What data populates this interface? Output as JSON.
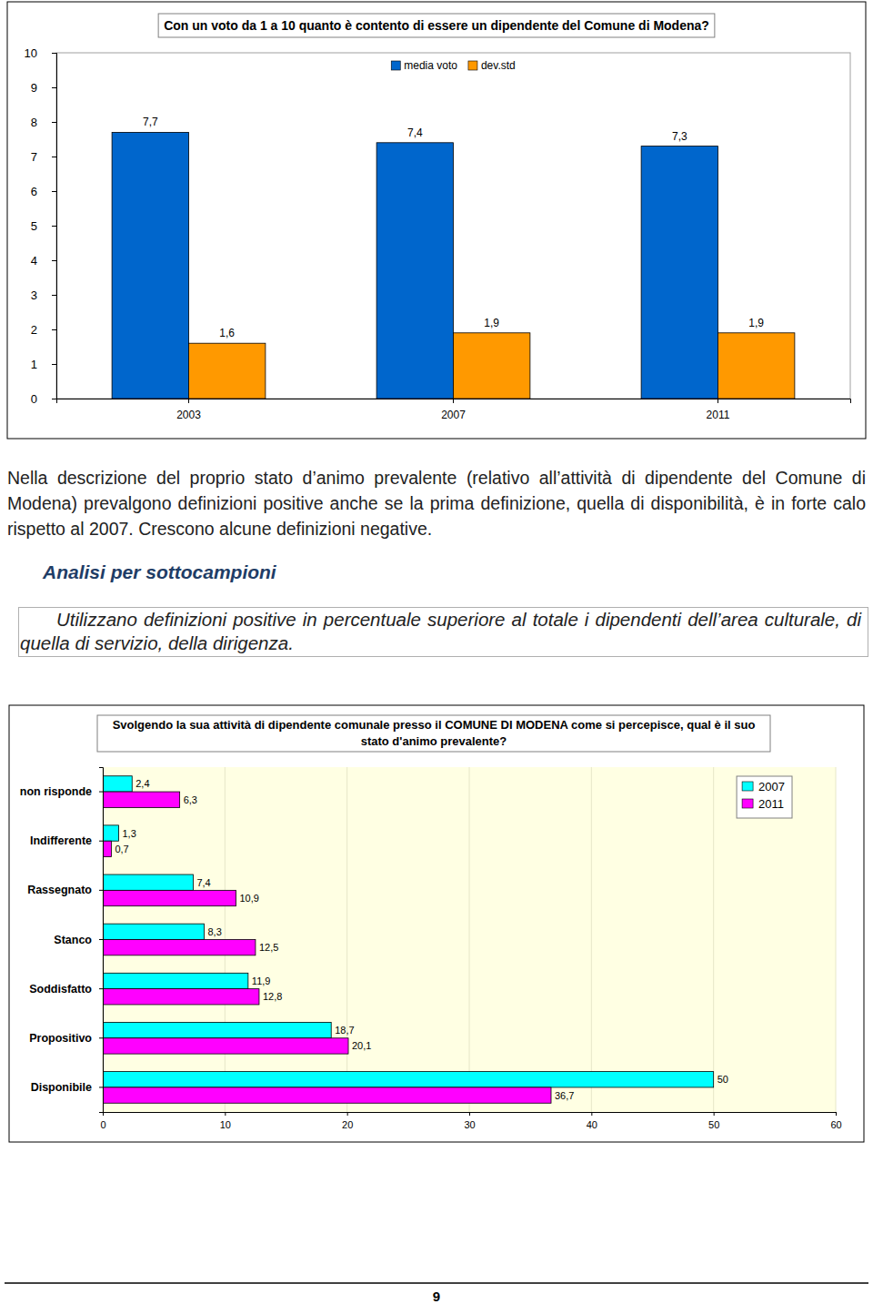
{
  "chart_data": [
    {
      "type": "bar",
      "title": "Con un voto da 1 a 10 quanto è contento di essere un dipendente del Comune di Modena?",
      "categories": [
        "2003",
        "2007",
        "2011"
      ],
      "series": [
        {
          "name": "media voto",
          "color": "#0066cc",
          "values": [
            7.7,
            7.4,
            7.3
          ],
          "value_labels": [
            "7,7",
            "7,4",
            "7,3"
          ]
        },
        {
          "name": "dev.std",
          "color": "#ff9900",
          "values": [
            1.6,
            1.9,
            1.9
          ],
          "value_labels": [
            "1,6",
            "1,9",
            "1,9"
          ]
        }
      ],
      "ylim": [
        0,
        10
      ],
      "yticks": [
        0,
        1,
        2,
        3,
        4,
        5,
        6,
        7,
        8,
        9,
        10
      ],
      "grid": false,
      "legend": "top",
      "data_labels": true
    },
    {
      "type": "bar",
      "title": "Svolgendo la sua attività di dipendente comunale presso il COMUNE DI MODENA come si percepisce, qual è il suo stato d'animo prevalente?",
      "orientation": "horizontal",
      "categories": [
        "non risponde",
        "Indifferente",
        "Rassegnato",
        "Stanco",
        "Soddisfatto",
        "Propositivo",
        "Disponibile"
      ],
      "series": [
        {
          "name": "2007",
          "color": "#00ffff",
          "values": [
            2.4,
            1.3,
            7.4,
            8.3,
            11.9,
            18.7,
            50
          ],
          "value_labels": [
            "2,4",
            "1,3",
            "7,4",
            "8,3",
            "11,9",
            "18,7",
            "50"
          ]
        },
        {
          "name": "2011",
          "color": "#ff00ff",
          "values": [
            6.3,
            0.7,
            10.9,
            12.5,
            12.8,
            20.1,
            36.7
          ],
          "value_labels": [
            "6,3",
            "0,7",
            "10,9",
            "12,5",
            "12,8",
            "20,1",
            "36,7"
          ]
        }
      ],
      "xlim": [
        0,
        60
      ],
      "xticks": [
        0,
        10,
        20,
        30,
        40,
        50,
        60
      ],
      "grid": true,
      "legend": "top-right",
      "data_labels": true
    }
  ],
  "text": {
    "paragraph": "Nella descrizione del proprio stato d’animo prevalente (relativo all’attività di dipendente del Comune di Modena) prevalgono definizioni positive anche se la prima definizione, quella di disponibilità, è in forte calo rispetto al 2007. Crescono alcune definizioni negative.",
    "heading": "Analisi per sottocampioni",
    "note": "Utilizzano definizioni positive in percentuale superiore al totale i dipendenti dell’area culturale, di quella di servizio, della dirigenza.",
    "page_number": "9"
  }
}
